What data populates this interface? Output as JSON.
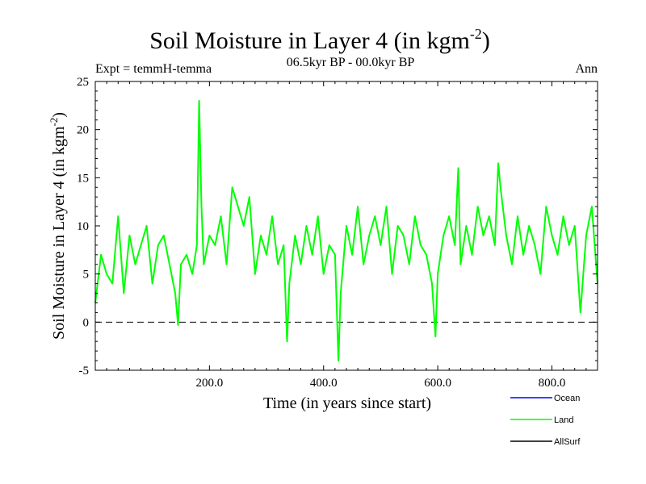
{
  "chart_data": {
    "type": "line",
    "title": "Soil Moisture in Layer 4 (in kgm",
    "title_sup": "-2",
    "title_close": ")",
    "subtitle": "06.5kyr BP - 00.0kyr BP",
    "left_note": "Expt = temmH-temma",
    "right_note": "Ann",
    "xlabel": "Time (in years since start)",
    "ylabel": "Soil Moisture in Layer 4 (in kgm",
    "ylabel_sup": "-2",
    "ylabel_close": ")",
    "xlim": [
      0,
      880
    ],
    "ylim": [
      -5,
      25
    ],
    "x_ticks": [
      200,
      400,
      600,
      800
    ],
    "x_tick_labels": [
      "200.0",
      "400.0",
      "600.0",
      "800.0"
    ],
    "y_ticks": [
      -5,
      0,
      5,
      10,
      15,
      20,
      25
    ],
    "y_tick_labels": [
      "-5",
      "0",
      "5",
      "10",
      "15",
      "20",
      "25"
    ],
    "reference_line_y": 0,
    "legend": [
      {
        "name": "Ocean",
        "color": "#0000ff"
      },
      {
        "name": "Land",
        "color": "#00ff00"
      },
      {
        "name": "AllSurf",
        "color": "#000000"
      }
    ],
    "series": [
      {
        "name": "Land",
        "color": "#00ff00",
        "x": [
          0,
          10,
          20,
          30,
          40,
          50,
          60,
          70,
          80,
          90,
          100,
          110,
          120,
          130,
          140,
          145,
          150,
          160,
          170,
          178,
          182,
          186,
          190,
          200,
          210,
          220,
          230,
          240,
          250,
          260,
          270,
          280,
          290,
          300,
          310,
          320,
          330,
          336,
          340,
          350,
          360,
          370,
          380,
          390,
          400,
          410,
          420,
          426,
          430,
          440,
          450,
          460,
          470,
          480,
          490,
          500,
          510,
          520,
          530,
          540,
          550,
          560,
          570,
          580,
          590,
          596,
          600,
          610,
          620,
          630,
          636,
          640,
          650,
          660,
          670,
          680,
          690,
          700,
          706,
          710,
          720,
          730,
          740,
          750,
          760,
          770,
          780,
          790,
          800,
          810,
          820,
          830,
          840,
          850,
          860,
          870,
          880
        ],
        "values": [
          2,
          7,
          5,
          4,
          11,
          3,
          9,
          6,
          8,
          10,
          4,
          8,
          9,
          6,
          3,
          -0.3,
          6,
          7,
          5,
          8,
          23,
          12,
          6,
          9,
          8,
          11,
          6,
          14,
          12,
          10,
          13,
          5,
          9,
          7,
          11,
          6,
          8,
          -2,
          4,
          9,
          6,
          10,
          7,
          11,
          5,
          8,
          7,
          -4,
          3,
          10,
          7,
          12,
          6,
          9,
          11,
          8,
          12,
          5,
          10,
          9,
          6,
          11,
          8,
          7,
          4,
          -1.5,
          5,
          9,
          11,
          8,
          16,
          6,
          10,
          7,
          12,
          9,
          11,
          8,
          16.5,
          14,
          9,
          6,
          11,
          7,
          10,
          8,
          5,
          12,
          9,
          7,
          11,
          8,
          10,
          1,
          9,
          12,
          4
        ]
      }
    ]
  }
}
